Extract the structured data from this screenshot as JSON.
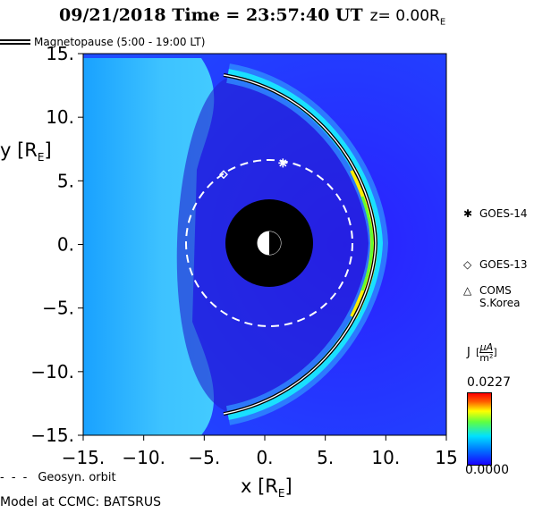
{
  "title": {
    "date_time": "09/21/2018 Time = 23:57:40 UT",
    "z_label": "z= 0.00R",
    "z_sub": "E"
  },
  "legend": {
    "magnetopause": "Magnetopause (5:00 - 19:00 LT)",
    "geosyn": "Geosyn. orbit",
    "geosyn_dash": "- - -",
    "goes14": "GOES-14",
    "goes13": "GOES-13",
    "coms_line1": "COMS",
    "coms_line2": "S.Korea",
    "goes14_symbol": "✱",
    "goes13_symbol": "◇",
    "coms_symbol": "△"
  },
  "footer": "Model at CCMC: BATSRUS",
  "colorbar": {
    "label": "J",
    "unit_num": "µA",
    "unit_den": "m²",
    "max": "0.0227",
    "min": "0.0000"
  },
  "chart_data": {
    "type": "heatmap",
    "xlabel": "x [R",
    "xlabel_sub": "E",
    "xlabel_end": "]",
    "ylabel": "y [R",
    "ylabel_sub": "E",
    "ylabel_end": "]",
    "xlim": [
      -15,
      15
    ],
    "ylim": [
      -15,
      15
    ],
    "x_ticks": [
      -15,
      -10,
      -5,
      0,
      5,
      10,
      15
    ],
    "y_ticks": [
      15,
      10,
      5,
      0,
      -5,
      -10,
      -15
    ],
    "x_tick_labels": [
      "−15.",
      "−10.",
      "−5.",
      "0.",
      "5.",
      "10.",
      "15"
    ],
    "y_tick_labels": [
      "15.",
      "10.",
      "5.",
      "0.",
      "−5.",
      "−10.",
      "−15."
    ],
    "earth_radius": 3.5,
    "geosyn_radius": 6.6,
    "magnetopause": {
      "subsolar_x": 8.5,
      "flank_y": 13.5,
      "tail_x": -3.5
    },
    "satellites": [
      {
        "name": "GOES-14",
        "x": 1.5,
        "y": 6.4,
        "marker": "asterisk"
      },
      {
        "name": "GOES-13",
        "x": -3.4,
        "y": 5.5,
        "marker": "diamond"
      }
    ],
    "colors": {
      "background": "#1a10ff",
      "accent": "#00ff40"
    }
  }
}
